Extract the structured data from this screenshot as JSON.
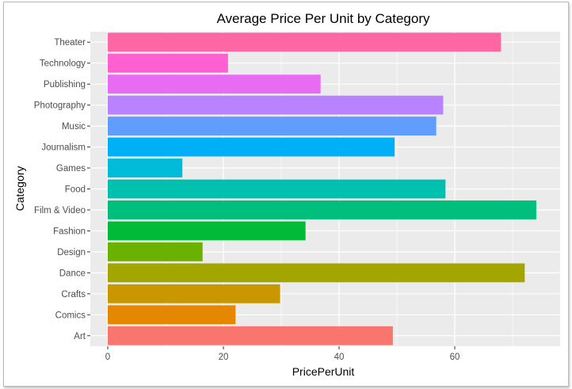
{
  "chart_data": {
    "type": "bar",
    "orientation": "horizontal",
    "title": "Average Price Per Unit by Category",
    "xlabel": "PricePerUnit",
    "ylabel": "Category",
    "xlim": [
      0,
      78
    ],
    "x_ticks": [
      0,
      20,
      40,
      60
    ],
    "x_tick_labels": [
      "0",
      "20",
      "40",
      "60"
    ],
    "grid": true,
    "background": "#ebebeb",
    "gridline_color": "#ffffff",
    "categories": [
      "Art",
      "Comics",
      "Crafts",
      "Dance",
      "Design",
      "Fashion",
      "Film & Video",
      "Food",
      "Games",
      "Journalism",
      "Music",
      "Photography",
      "Publishing",
      "Technology",
      "Theater"
    ],
    "values": [
      49.3,
      22.1,
      29.8,
      72.1,
      16.4,
      34.2,
      74.1,
      58.4,
      12.9,
      49.6,
      56.8,
      58.0,
      36.8,
      20.8,
      68.0
    ],
    "colors": [
      "#f8766d",
      "#e58700",
      "#c99800",
      "#a3a500",
      "#6bb100",
      "#00ba38",
      "#00bf7d",
      "#00c0af",
      "#00bcd8",
      "#00b0f6",
      "#619cff",
      "#b983ff",
      "#e76bf3",
      "#fd61d1",
      "#ff67a4"
    ]
  }
}
